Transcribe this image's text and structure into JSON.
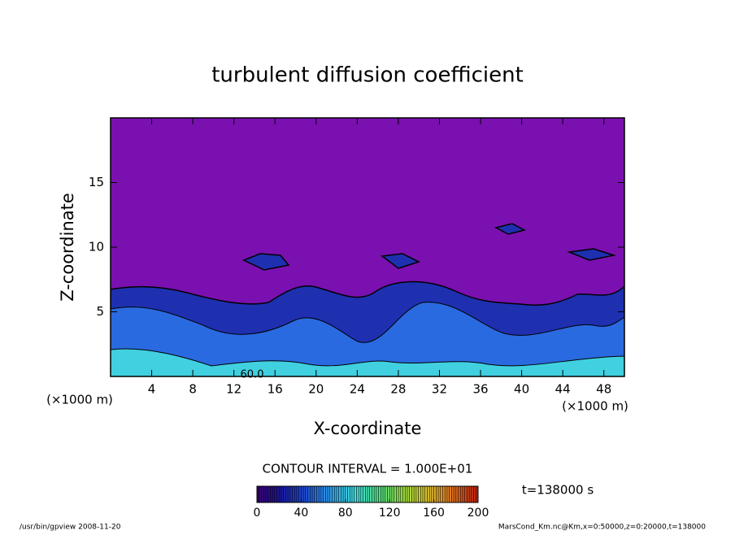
{
  "chart_data": {
    "type": "contour",
    "title": "turbulent diffusion coefficient",
    "x_label": "X-coordinate",
    "y_label": "Z-coordinate",
    "x_unit": "(×1000 m)",
    "y_unit": "(×1000 m)",
    "xlim": [
      0,
      50
    ],
    "xticks": [
      4,
      8,
      12,
      16,
      20,
      24,
      28,
      32,
      36,
      40,
      44,
      48
    ],
    "ylim": [
      0,
      20
    ],
    "yticks": [
      5,
      10,
      15
    ],
    "contour_labels": [
      {
        "value": 60,
        "label": "60.0"
      }
    ],
    "contour_interval": "CONTOUR INTERVAL = 1.000E+01",
    "time_label": "t=138000 s",
    "colorbar": {
      "clim": [
        0,
        200
      ],
      "ticks": [
        0,
        40,
        80,
        120,
        160,
        200
      ],
      "colormap": [
        "#3a0070",
        "#1a1aa0",
        "#2050d8",
        "#30a0f0",
        "#40e0e0",
        "#50e080",
        "#a0e040",
        "#e0c030",
        "#e07020",
        "#c02010"
      ]
    },
    "footer_left": "/usr/bin/gpview  2008-11-20",
    "footer_right": "MarsCond_Km.nc@Km,x=0:50000,z=0:20000,t=138000"
  }
}
